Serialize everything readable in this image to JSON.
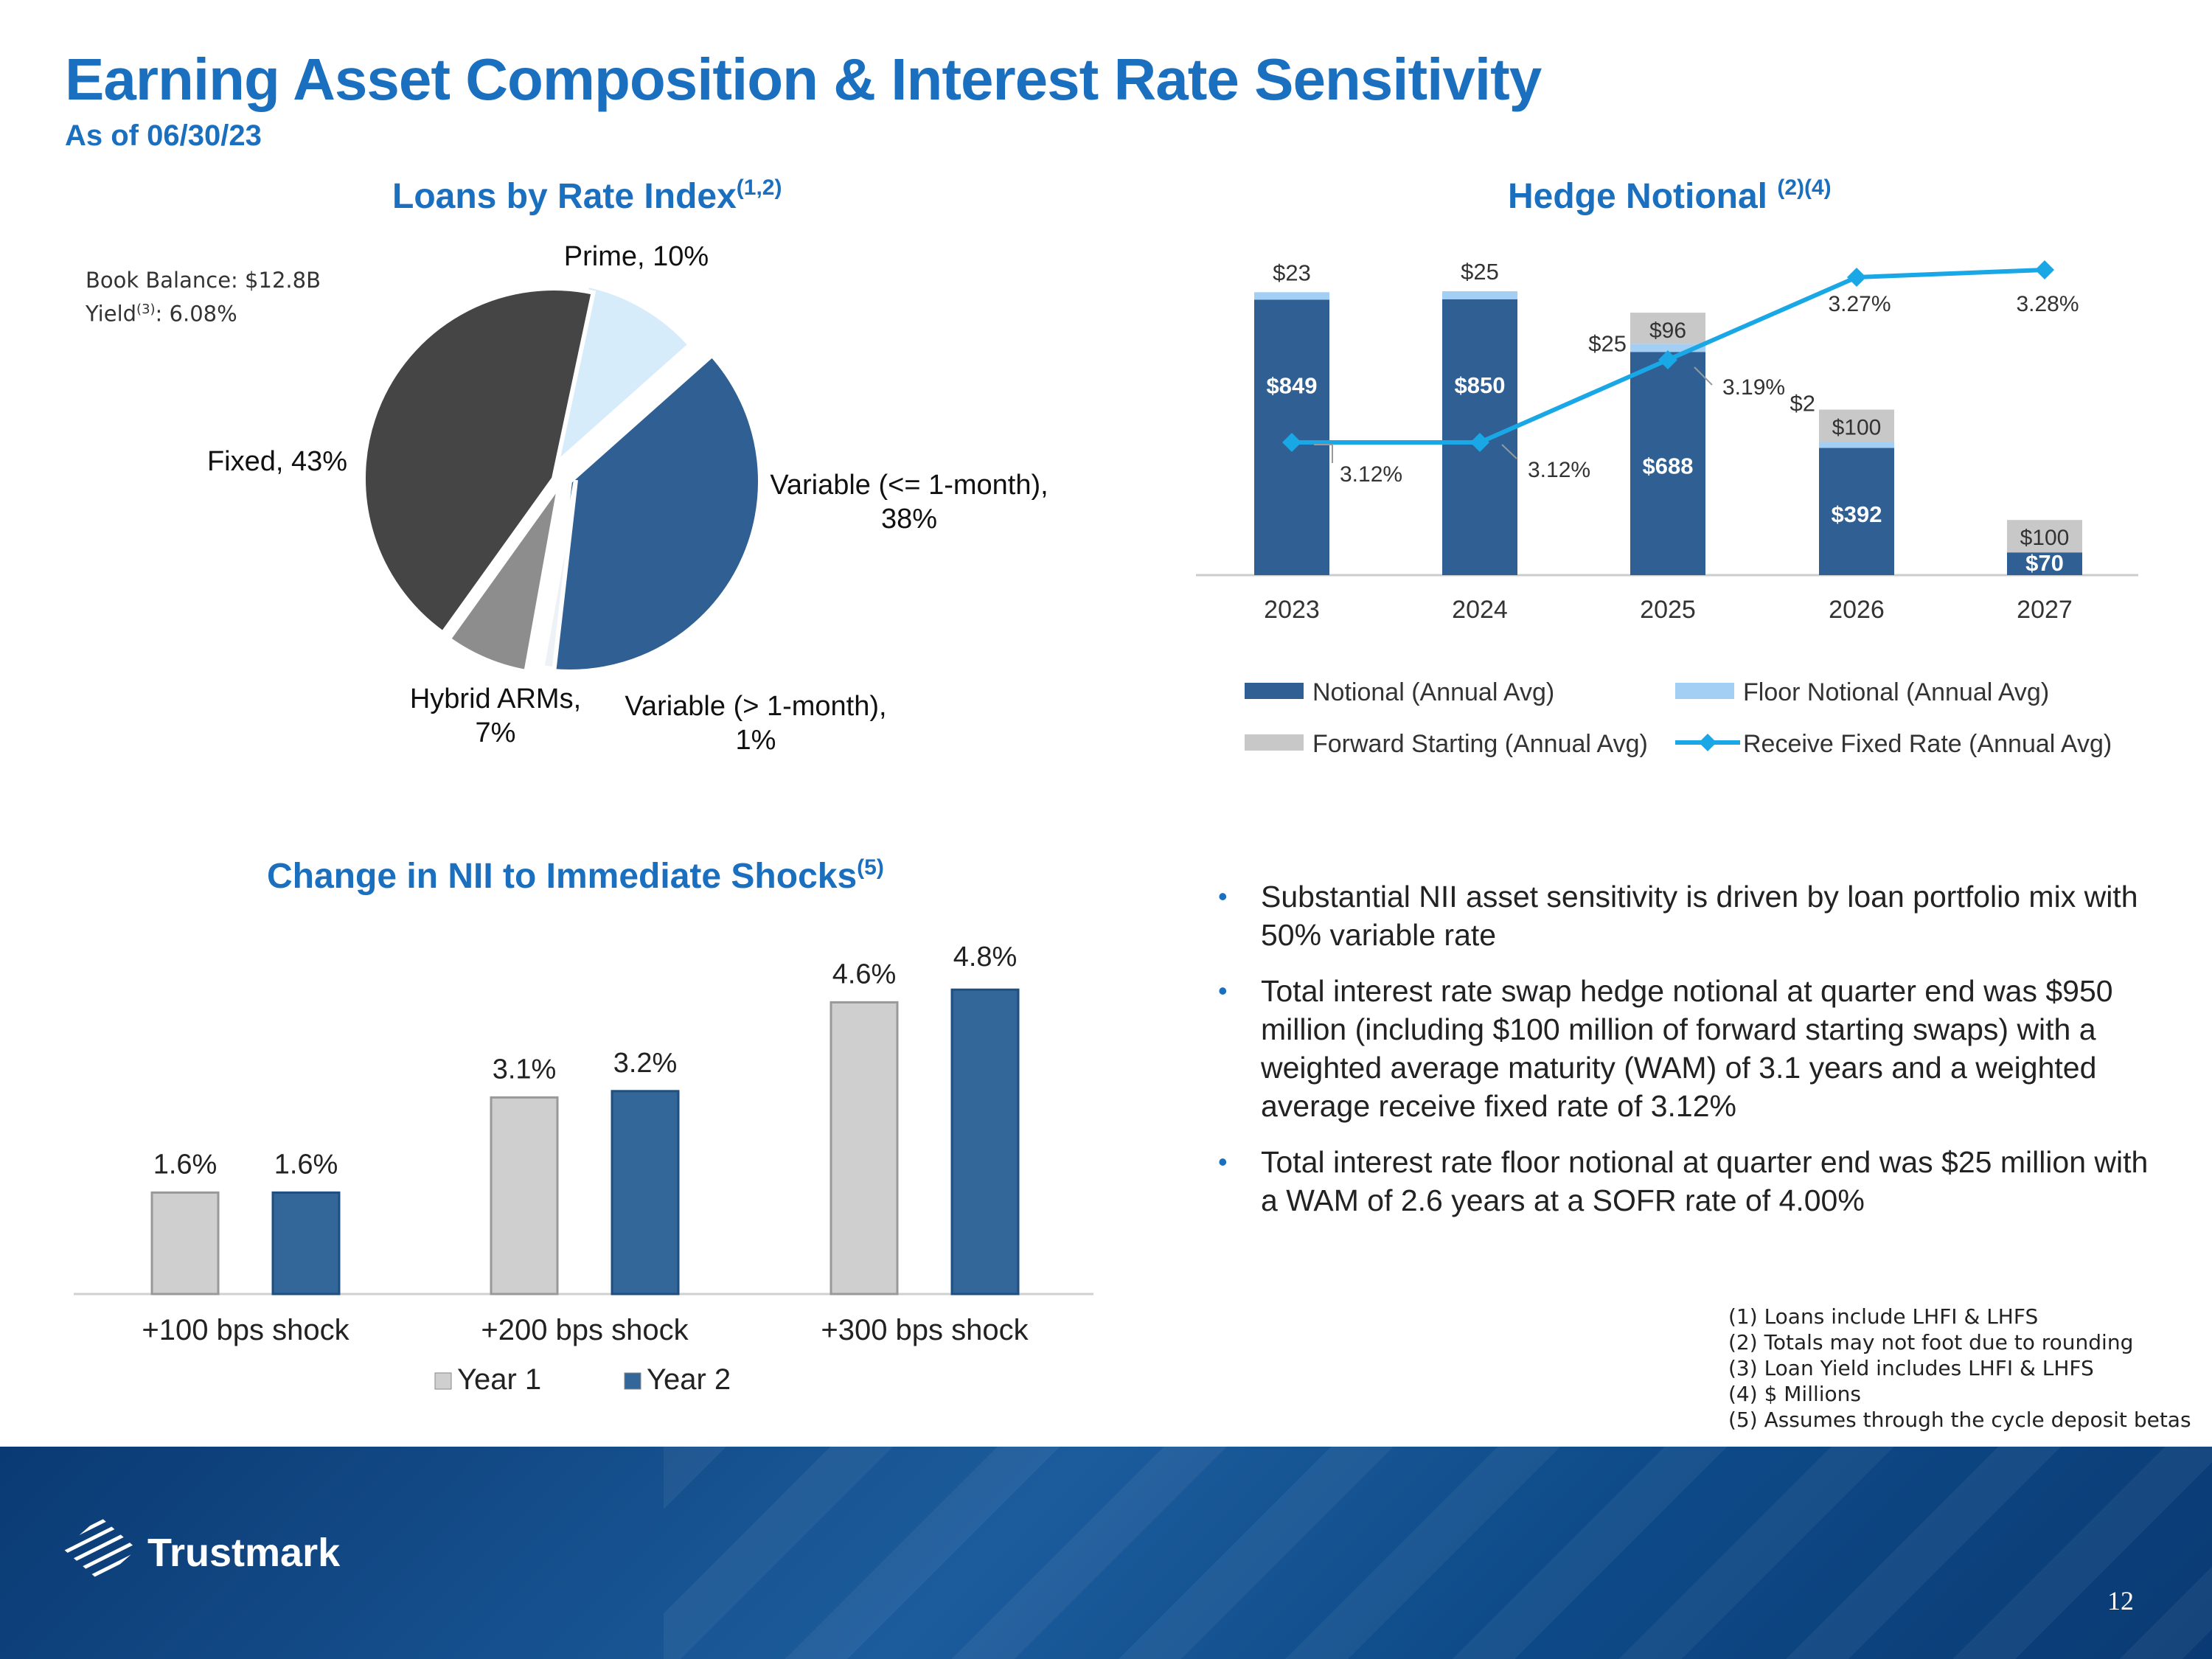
{
  "header": {
    "title": "Earning Asset Composition & Interest Rate Sensitivity",
    "subtitle": "As of 06/30/23"
  },
  "loans_chart": {
    "title": "Loans by Rate Index",
    "title_sup": "(1,2)",
    "book_balance": "Book Balance: $12.8B",
    "yield_label": "Yield",
    "yield_sup": "(3)",
    "yield_value": ": 6.08%"
  },
  "hedge_chart": {
    "title": "Hedge Notional ",
    "title_sup": "(2)(4)"
  },
  "nii_chart": {
    "title": "Change in NII to Immediate Shocks",
    "title_sup": "(5)"
  },
  "chart_data": [
    {
      "type": "pie",
      "title": "Loans by Rate Index(1,2)",
      "slices": [
        {
          "label": "Prime, 10%",
          "value": 10,
          "color": "#d7ecfb"
        },
        {
          "label": "Variable (<= 1-month), 38%",
          "value": 38,
          "color": "#2f5f93"
        },
        {
          "label": "Variable (> 1-month), 1%",
          "value": 1,
          "color": "#eef2f6"
        },
        {
          "label": "Hybrid ARMs, 7%",
          "value": 7,
          "color": "#8d8d8d"
        },
        {
          "label": "Fixed, 43%",
          "value": 43,
          "color": "#454545"
        }
      ],
      "label_lines": {
        "prime": [
          "Prime, 10%"
        ],
        "var1": [
          "Variable (<= 1-month),",
          "38%"
        ],
        "var2": [
          "Variable (> 1-month),",
          "1%"
        ],
        "hybrid": [
          "Hybrid ARMs,",
          "7%"
        ],
        "fixed": [
          "Fixed, 43%"
        ]
      }
    },
    {
      "type": "bar",
      "stacked": true,
      "title": "Hedge Notional (2)(4)",
      "categories": [
        "2023",
        "2024",
        "2025",
        "2026",
        "2027"
      ],
      "series": [
        {
          "name": "Notional (Annual Avg)",
          "values": [
            849,
            850,
            688,
            392,
            70
          ],
          "labels": [
            "$849",
            "$850",
            "$688",
            "$392",
            "$70"
          ],
          "color": "#2f5f93"
        },
        {
          "name": "Floor Notional (Annual Avg)",
          "values": [
            23,
            25,
            25,
            2,
            0
          ],
          "labels": [
            "$23",
            "$25",
            "$25",
            "$2",
            ""
          ],
          "color": "#a3cff5"
        },
        {
          "name": "Forward Starting (Annual Avg)",
          "values": [
            0,
            0,
            96,
            100,
            100
          ],
          "labels": [
            "",
            "",
            "$96",
            "$100",
            "$100"
          ],
          "color": "#c8c8c8"
        }
      ],
      "line": {
        "name": "Receive Fixed Rate (Annual Avg)",
        "values": [
          3.12,
          3.12,
          3.19,
          3.27,
          3.28
        ],
        "labels": [
          "3.12%",
          "3.12%",
          "3.19%",
          "3.27%",
          "3.28%"
        ],
        "color": "#1aa7e6"
      },
      "ylim": [
        0,
        1000
      ],
      "legend": "bottom"
    },
    {
      "type": "bar",
      "title": "Change in NII to Immediate Shocks(5)",
      "categories": [
        "+100 bps shock",
        "+200 bps shock",
        "+300 bps shock"
      ],
      "series": [
        {
          "name": "Year 1",
          "values": [
            1.6,
            3.1,
            4.6
          ],
          "labels": [
            "1.6%",
            "3.1%",
            "4.6%"
          ],
          "color": "#cfcfcf"
        },
        {
          "name": "Year 2",
          "values": [
            1.6,
            3.2,
            4.8
          ],
          "labels": [
            "1.6%",
            "3.2%",
            "4.8%"
          ],
          "color": "#336699"
        }
      ],
      "ylim": [
        0,
        5.0
      ],
      "legend": "bottom"
    }
  ],
  "bullets": [
    "Substantial NII asset sensitivity is driven by loan portfolio mix with 50% variable rate",
    "Total interest rate swap hedge notional at quarter end was $950 million (including $100 million of forward starting swaps) with a weighted average maturity (WAM) of 3.1 years and a weighted average receive fixed rate of 3.12%",
    "Total interest rate floor notional at quarter end was $25 million with a WAM of 2.6 years at a SOFR rate of 4.00%"
  ],
  "footnotes": [
    "(1) Loans include LHFI & LHFS",
    "(2) Totals may not foot due to rounding",
    "(3) Loan Yield includes LHFI & LHFS",
    "(4) $ Millions",
    "(5) Assumes through the cycle deposit betas"
  ],
  "footer": {
    "brand": "Trustmark",
    "page_number": "12",
    "logo_icon": "trustmark-globe-icon"
  }
}
